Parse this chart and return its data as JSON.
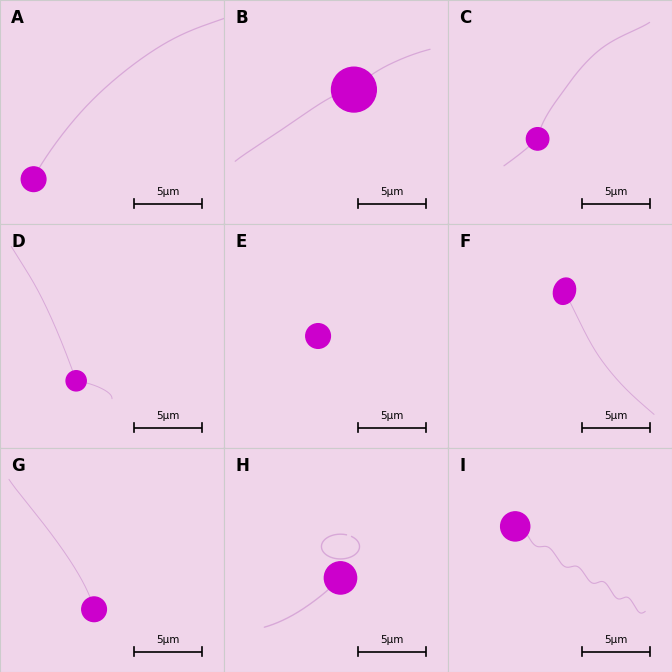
{
  "background_color": "#f5dff0",
  "grid_rows": 3,
  "grid_cols": 3,
  "labels": [
    "A",
    "B",
    "C",
    "D",
    "E",
    "F",
    "G",
    "H",
    "I"
  ],
  "scale_bar_text": "5μm",
  "head_color": "#cc00cc",
  "tail_color": "#d8a8d8",
  "bg_pink": "#f0d5ea",
  "border_color": "#dddddd"
}
